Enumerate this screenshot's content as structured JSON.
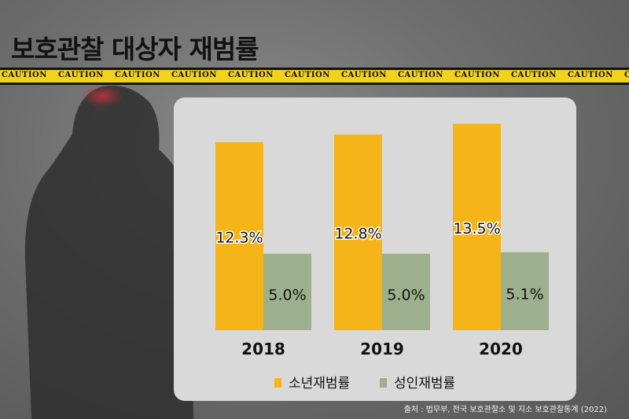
{
  "title": "보호관찰 대상자 재범률",
  "tape": {
    "word": "CAUTION",
    "color": "#f2d21a"
  },
  "source": "출처 : 법무부, 전국 보호관찰소 및 지소 보호관찰통계 (2022)",
  "chart_data": {
    "type": "bar",
    "title": "",
    "xlabel": "",
    "ylabel": "",
    "categories": [
      "2018",
      "2019",
      "2020"
    ],
    "series": [
      {
        "name": "소년재범률",
        "values": [
          12.3,
          12.8,
          13.5
        ],
        "labels": [
          "12.3%",
          "12.8%",
          "13.5%"
        ],
        "color": "#f5b519"
      },
      {
        "name": "성인재범률",
        "values": [
          5.0,
          5.0,
          5.1
        ],
        "labels": [
          "5.0%",
          "5.0%",
          "5.1%"
        ],
        "color": "#9db08d"
      }
    ],
    "ylim": [
      0,
      14.3
    ],
    "grid": false,
    "legend": "bottom-center"
  }
}
